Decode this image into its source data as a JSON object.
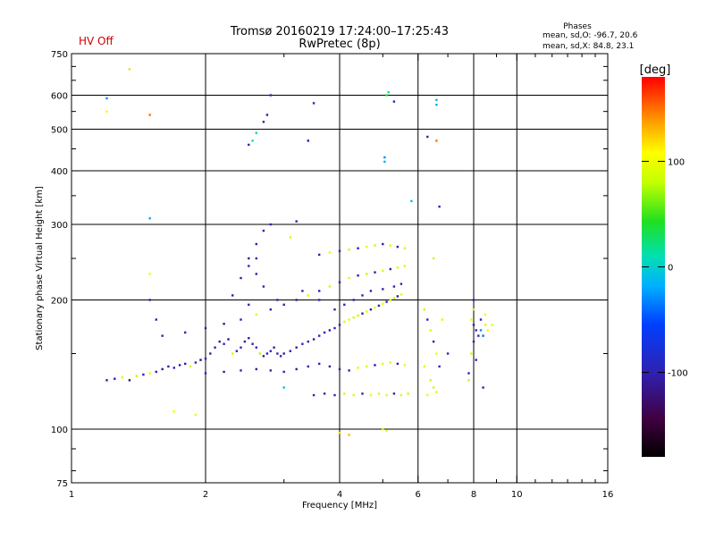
{
  "chart_data": {
    "type": "scatter",
    "title": "Tromsø 20160219 17:24:00–17:25:43",
    "subtitle": "RwPretec (8p)",
    "status_label": "HV Off",
    "status_color": "#cc0000",
    "stats": {
      "heading": "Phases",
      "line_o": "mean, sd,O: -96.7, 20.6",
      "line_x": "mean, sd,X:  84.8, 23.1"
    },
    "xlabel": "Frequency [MHz]",
    "ylabel": "Stationary phase Virtual Height [km]",
    "x_scale": "log",
    "y_scale": "log",
    "xlim": [
      1,
      16
    ],
    "ylim": [
      75,
      750
    ],
    "x_ticks": [
      1,
      2,
      4,
      6,
      8,
      10,
      16
    ],
    "y_ticks": [
      75,
      100,
      200,
      300,
      400,
      500,
      600,
      750
    ],
    "x_grid": [
      2,
      4,
      6,
      8,
      10
    ],
    "y_grid": [
      100,
      200,
      300,
      400,
      500,
      600
    ],
    "grid": true,
    "colorbar": {
      "label": "[deg]",
      "range": [
        -180,
        180
      ],
      "ticks": [
        100,
        0,
        -100
      ]
    },
    "series": [
      {
        "values": [
          [
            1.2,
            130,
            -110
          ],
          [
            1.25,
            131,
            -105
          ],
          [
            1.3,
            132,
            90
          ],
          [
            1.35,
            130,
            -120
          ],
          [
            1.4,
            133,
            80
          ],
          [
            1.45,
            134,
            -100
          ],
          [
            1.5,
            135,
            95
          ],
          [
            1.55,
            136,
            -90
          ],
          [
            1.6,
            138,
            -115
          ],
          [
            1.65,
            140,
            -100
          ],
          [
            1.7,
            139,
            -95
          ],
          [
            1.75,
            141,
            -110
          ],
          [
            1.8,
            142,
            -105
          ],
          [
            1.85,
            140,
            85
          ],
          [
            1.9,
            143,
            -100
          ],
          [
            1.95,
            145,
            -120
          ],
          [
            2.0,
            146,
            -95
          ],
          [
            2.05,
            150,
            -110
          ],
          [
            2.1,
            155,
            -100
          ],
          [
            2.15,
            160,
            -105
          ],
          [
            2.2,
            158,
            -90
          ],
          [
            2.25,
            162,
            -115
          ],
          [
            2.3,
            150,
            90
          ],
          [
            2.35,
            152,
            -100
          ],
          [
            2.4,
            155,
            -95
          ],
          [
            2.45,
            160,
            -110
          ],
          [
            2.5,
            163,
            -105
          ],
          [
            2.55,
            158,
            -100
          ],
          [
            2.6,
            155,
            -90
          ],
          [
            2.65,
            150,
            75
          ],
          [
            2.7,
            148,
            -110
          ],
          [
            2.75,
            150,
            -100
          ],
          [
            2.8,
            152,
            -95
          ],
          [
            2.85,
            155,
            -105
          ],
          [
            2.9,
            150,
            -100
          ],
          [
            2.95,
            148,
            -90
          ],
          [
            3.0,
            150,
            -110
          ],
          [
            3.1,
            152,
            -100
          ],
          [
            3.2,
            155,
            -105
          ],
          [
            3.3,
            158,
            -95
          ],
          [
            3.4,
            160,
            -100
          ],
          [
            3.5,
            162,
            -110
          ],
          [
            3.6,
            165,
            -90
          ],
          [
            3.7,
            168,
            -100
          ],
          [
            3.8,
            170,
            -105
          ],
          [
            3.9,
            172,
            -95
          ],
          [
            4.0,
            175,
            -100
          ],
          [
            4.1,
            178,
            90
          ],
          [
            4.2,
            180,
            95
          ],
          [
            4.3,
            182,
            85
          ],
          [
            4.4,
            184,
            80
          ],
          [
            4.5,
            186,
            -100
          ],
          [
            4.6,
            188,
            90
          ],
          [
            4.7,
            190,
            -105
          ],
          [
            4.8,
            192,
            95
          ],
          [
            4.9,
            194,
            -100
          ],
          [
            5.0,
            196,
            100
          ],
          [
            5.1,
            198,
            -95
          ],
          [
            5.2,
            200,
            90
          ],
          [
            5.3,
            202,
            80
          ],
          [
            5.4,
            204,
            -110
          ],
          [
            5.5,
            206,
            95
          ],
          [
            2.0,
            135,
            -100
          ],
          [
            2.2,
            136,
            -105
          ],
          [
            2.4,
            137,
            -95
          ],
          [
            2.6,
            138,
            -110
          ],
          [
            2.8,
            137,
            -100
          ],
          [
            3.0,
            136,
            -90
          ],
          [
            3.2,
            138,
            -105
          ],
          [
            3.4,
            140,
            -100
          ],
          [
            3.6,
            142,
            -95
          ],
          [
            3.8,
            140,
            -110
          ],
          [
            4.0,
            138,
            -100
          ],
          [
            4.2,
            137,
            -95
          ],
          [
            4.4,
            139,
            90
          ],
          [
            4.6,
            140,
            85
          ],
          [
            4.8,
            141,
            -105
          ],
          [
            5.0,
            142,
            95
          ],
          [
            5.2,
            143,
            90
          ],
          [
            5.4,
            142,
            -100
          ],
          [
            5.6,
            141,
            100
          ],
          [
            3.5,
            120,
            -100
          ],
          [
            3.7,
            121,
            -105
          ],
          [
            3.9,
            120,
            -95
          ],
          [
            4.1,
            121,
            85
          ],
          [
            4.3,
            120,
            90
          ],
          [
            4.5,
            121,
            -100
          ],
          [
            4.7,
            120,
            95
          ],
          [
            4.9,
            121,
            88
          ],
          [
            5.1,
            120,
            92
          ],
          [
            5.3,
            121,
            -100
          ],
          [
            5.5,
            120,
            90
          ],
          [
            5.7,
            121,
            85
          ],
          [
            1.6,
            165,
            -100
          ],
          [
            1.8,
            168,
            -95
          ],
          [
            2.0,
            172,
            -105
          ],
          [
            2.2,
            176,
            -110
          ],
          [
            2.4,
            180,
            -100
          ],
          [
            2.6,
            185,
            90
          ],
          [
            2.8,
            190,
            -95
          ],
          [
            3.0,
            195,
            -100
          ],
          [
            3.2,
            200,
            -105
          ],
          [
            3.4,
            205,
            90
          ],
          [
            3.6,
            210,
            -100
          ],
          [
            3.8,
            215,
            85
          ],
          [
            4.0,
            220,
            -95
          ],
          [
            4.2,
            225,
            90
          ],
          [
            4.4,
            228,
            -100
          ],
          [
            4.6,
            230,
            80
          ],
          [
            4.8,
            232,
            -105
          ],
          [
            5.0,
            234,
            90
          ],
          [
            5.2,
            236,
            -100
          ],
          [
            5.4,
            238,
            85
          ],
          [
            5.6,
            240,
            90
          ],
          [
            3.6,
            255,
            -100
          ],
          [
            3.8,
            258,
            90
          ],
          [
            4.0,
            260,
            -95
          ],
          [
            4.2,
            262,
            85
          ],
          [
            4.4,
            264,
            -100
          ],
          [
            4.6,
            266,
            90
          ],
          [
            4.8,
            268,
            80
          ],
          [
            5.0,
            270,
            -105
          ],
          [
            5.2,
            268,
            90
          ],
          [
            5.4,
            266,
            -100
          ],
          [
            5.6,
            264,
            88
          ],
          [
            2.7,
            290,
            -100
          ],
          [
            2.8,
            300,
            -95
          ],
          [
            3.2,
            305,
            -105
          ],
          [
            3.1,
            280,
            90
          ],
          [
            2.6,
            270,
            -100
          ],
          [
            2.5,
            250,
            -110
          ],
          [
            2.5,
            460,
            -100
          ],
          [
            2.55,
            470,
            10
          ],
          [
            2.6,
            490,
            20
          ],
          [
            2.7,
            520,
            -95
          ],
          [
            2.75,
            540,
            -105
          ],
          [
            2.8,
            600,
            -100
          ],
          [
            3.5,
            575,
            -100
          ],
          [
            3.4,
            470,
            -105
          ],
          [
            5.1,
            600,
            40
          ],
          [
            5.15,
            610,
            10
          ],
          [
            5.05,
            420,
            -20
          ],
          [
            5.05,
            430,
            -30
          ],
          [
            5.3,
            580,
            -100
          ],
          [
            6.6,
            585,
            -10
          ],
          [
            6.6,
            570,
            -20
          ],
          [
            6.6,
            470,
            150
          ],
          [
            6.3,
            480,
            -100
          ],
          [
            6.7,
            330,
            -100
          ],
          [
            5.8,
            340,
            -10
          ],
          [
            6.5,
            250,
            80
          ],
          [
            1.2,
            590,
            -30
          ],
          [
            1.2,
            550,
            110
          ],
          [
            1.35,
            690,
            120
          ],
          [
            1.5,
            540,
            150
          ],
          [
            1.5,
            310,
            -20
          ],
          [
            1.5,
            230,
            100
          ],
          [
            1.5,
            200,
            -100
          ],
          [
            1.55,
            180,
            -100
          ],
          [
            6.2,
            190,
            80
          ],
          [
            6.3,
            180,
            -100
          ],
          [
            6.4,
            170,
            90
          ],
          [
            6.5,
            160,
            -100
          ],
          [
            6.6,
            150,
            100
          ],
          [
            6.2,
            140,
            90
          ],
          [
            6.4,
            130,
            85
          ],
          [
            6.3,
            120,
            95
          ],
          [
            6.5,
            125,
            80
          ],
          [
            6.6,
            122,
            90
          ],
          [
            6.7,
            140,
            -100
          ],
          [
            6.8,
            180,
            90
          ],
          [
            7.0,
            150,
            -100
          ],
          [
            8.0,
            200,
            -100
          ],
          [
            8.0,
            190,
            90
          ],
          [
            7.9,
            180,
            100
          ],
          [
            8.0,
            175,
            -100
          ],
          [
            8.1,
            170,
            -100
          ],
          [
            8.0,
            160,
            -100
          ],
          [
            8.2,
            165,
            -100
          ],
          [
            7.9,
            150,
            85
          ],
          [
            8.1,
            145,
            -100
          ],
          [
            8.3,
            170,
            -30
          ],
          [
            8.4,
            165,
            -40
          ],
          [
            8.5,
            175,
            90
          ],
          [
            8.6,
            170,
            100
          ],
          [
            8.8,
            175,
            95
          ],
          [
            8.3,
            180,
            -100
          ],
          [
            8.5,
            185,
            100
          ],
          [
            1.7,
            110,
            100
          ],
          [
            1.9,
            108,
            95
          ],
          [
            3.0,
            125,
            -10
          ],
          [
            4.0,
            98,
            120
          ],
          [
            4.2,
            97,
            130
          ],
          [
            5.0,
            100,
            90
          ],
          [
            5.1,
            99,
            100
          ],
          [
            7.8,
            130,
            80
          ],
          [
            8.4,
            125,
            -100
          ],
          [
            7.8,
            135,
            -100
          ],
          [
            2.9,
            200,
            -100
          ],
          [
            3.3,
            210,
            -100
          ],
          [
            3.6,
            200,
            -100
          ],
          [
            3.9,
            190,
            -100
          ],
          [
            4.1,
            195,
            -100
          ],
          [
            4.3,
            200,
            -100
          ],
          [
            4.5,
            205,
            -100
          ],
          [
            4.7,
            210,
            -100
          ],
          [
            5.0,
            212,
            -100
          ],
          [
            5.3,
            215,
            -100
          ],
          [
            5.5,
            218,
            -100
          ],
          [
            2.3,
            205,
            -100
          ],
          [
            2.5,
            195,
            -100
          ],
          [
            2.7,
            215,
            -100
          ],
          [
            2.6,
            230,
            -100
          ],
          [
            2.5,
            240,
            -100
          ],
          [
            2.4,
            225,
            -100
          ],
          [
            2.6,
            250,
            -100
          ]
        ]
      }
    ]
  }
}
